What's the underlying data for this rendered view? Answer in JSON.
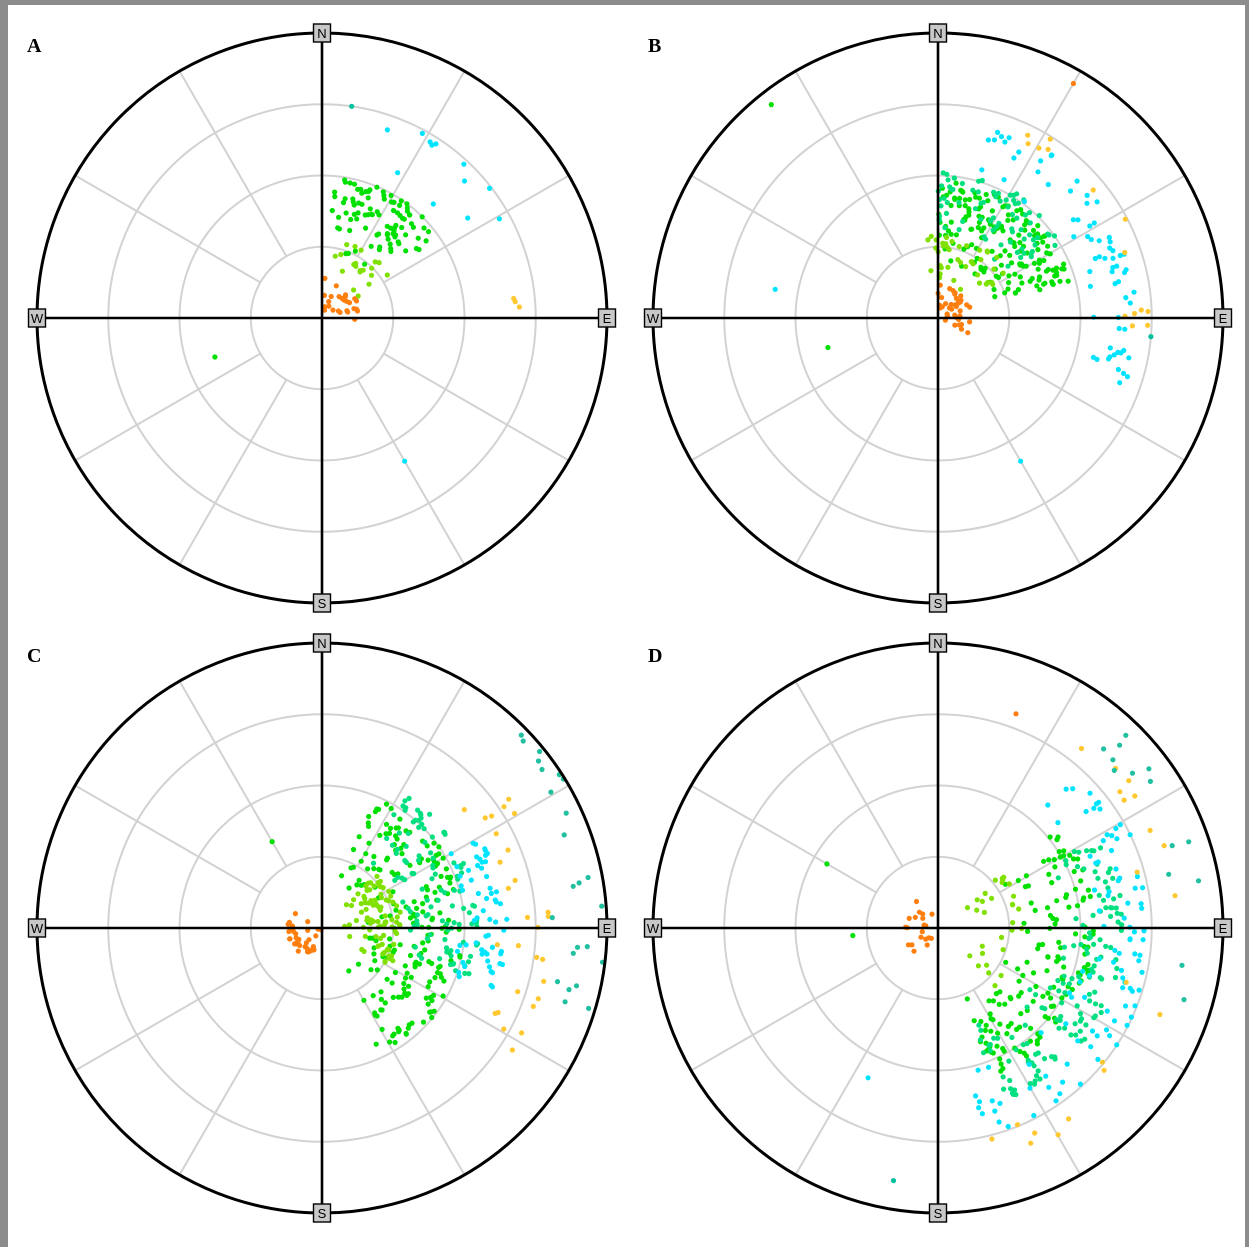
{
  "chart_data": [
    {
      "type": "scatter",
      "panel_label": "A",
      "projection": "polar (skyplot)",
      "direction_labels": [
        "N",
        "E",
        "S",
        "W"
      ],
      "rings": 4,
      "spokes_deg": 30,
      "clusters": [
        {
          "color": "#00e000",
          "count": 95,
          "az_range": [
            5,
            55
          ],
          "r_range": [
            0.22,
            0.5
          ]
        },
        {
          "color": "#80e000",
          "count": 20,
          "az_range": [
            10,
            60
          ],
          "r_range": [
            0.12,
            0.28
          ]
        },
        {
          "color": "#00e5ff",
          "count": 12,
          "az_range": [
            18,
            65
          ],
          "r_range": [
            0.48,
            0.75
          ]
        },
        {
          "color": "#ff7f0e",
          "count": 26,
          "az_range": [
            0,
            95
          ],
          "r_range": [
            0.0,
            0.14
          ]
        },
        {
          "color": "#ffc830",
          "count": 3,
          "az_range": [
            84,
            88
          ],
          "r_range": [
            0.66,
            0.7
          ]
        }
      ],
      "outliers": [
        {
          "color": "#00e000",
          "az": 250,
          "r": 0.4
        },
        {
          "color": "#00e5ff",
          "az": 150,
          "r": 0.58
        },
        {
          "color": "#00c0a0",
          "az": 8,
          "r": 0.75
        }
      ]
    },
    {
      "type": "scatter",
      "panel_label": "B",
      "projection": "polar (skyplot)",
      "direction_labels": [
        "N",
        "E",
        "S",
        "W"
      ],
      "rings": 4,
      "spokes_deg": 30,
      "clusters": [
        {
          "color": "#00e000",
          "count": 170,
          "az_range": [
            0,
            75
          ],
          "r_range": [
            0.18,
            0.48
          ]
        },
        {
          "color": "#00e080",
          "count": 80,
          "az_range": [
            0,
            60
          ],
          "r_range": [
            0.28,
            0.52
          ]
        },
        {
          "color": "#80e000",
          "count": 40,
          "az_range": [
            350,
            60
          ],
          "r_range": [
            0.1,
            0.3
          ]
        },
        {
          "color": "#00e5ff",
          "count": 70,
          "az_range": [
            15,
            110
          ],
          "r_range": [
            0.5,
            0.7
          ]
        },
        {
          "color": "#ff7f0e",
          "count": 40,
          "az_range": [
            0,
            120
          ],
          "r_range": [
            0.0,
            0.12
          ]
        },
        {
          "color": "#ffc830",
          "count": 14,
          "az_range": [
            20,
            95
          ],
          "r_range": [
            0.62,
            0.75
          ]
        }
      ],
      "outliers": [
        {
          "color": "#ff7f0e",
          "az": 30,
          "r": 0.95
        },
        {
          "color": "#00e000",
          "az": 322,
          "r": 0.95
        },
        {
          "color": "#00e5ff",
          "az": 150,
          "r": 0.58
        },
        {
          "color": "#00e5ff",
          "az": 280,
          "r": 0.58
        },
        {
          "color": "#00e000",
          "az": 255,
          "r": 0.4
        },
        {
          "color": "#00c0a0",
          "az": 95,
          "r": 0.75
        }
      ]
    },
    {
      "type": "scatter",
      "panel_label": "C",
      "projection": "polar (skyplot)",
      "direction_labels": [
        "N",
        "E",
        "S",
        "W"
      ],
      "rings": 4,
      "spokes_deg": 30,
      "clusters": [
        {
          "color": "#00e000",
          "count": 200,
          "az_range": [
            20,
            150
          ],
          "r_range": [
            0.15,
            0.5
          ]
        },
        {
          "color": "#00e080",
          "count": 110,
          "az_range": [
            30,
            110
          ],
          "r_range": [
            0.28,
            0.55
          ]
        },
        {
          "color": "#80e000",
          "count": 90,
          "az_range": [
            45,
            120
          ],
          "r_range": [
            0.05,
            0.28
          ]
        },
        {
          "color": "#00e5ff",
          "count": 60,
          "az_range": [
            60,
            110
          ],
          "r_range": [
            0.45,
            0.65
          ]
        },
        {
          "color": "#ff7f0e",
          "count": 35,
          "az_range": [
            200,
            300
          ],
          "r_range": [
            0.0,
            0.12
          ]
        },
        {
          "color": "#ffc830",
          "count": 28,
          "az_range": [
            50,
            130
          ],
          "r_range": [
            0.6,
            0.8
          ]
        },
        {
          "color": "#20c0a0",
          "count": 24,
          "az_range": [
            45,
            110
          ],
          "r_range": [
            0.75,
            1.0
          ]
        }
      ],
      "outliers": [
        {
          "color": "#00e000",
          "az": 330,
          "r": 0.35
        },
        {
          "color": "#00e000",
          "az": 155,
          "r": 0.45
        }
      ]
    },
    {
      "type": "scatter",
      "panel_label": "D",
      "projection": "polar (skyplot)",
      "direction_labels": [
        "N",
        "E",
        "S",
        "W"
      ],
      "rings": 4,
      "spokes_deg": 30,
      "clusters": [
        {
          "color": "#00e000",
          "count": 150,
          "az_range": [
            50,
            160
          ],
          "r_range": [
            0.25,
            0.55
          ]
        },
        {
          "color": "#00e080",
          "count": 140,
          "az_range": [
            60,
            160
          ],
          "r_range": [
            0.35,
            0.65
          ]
        },
        {
          "color": "#00e5ff",
          "count": 100,
          "az_range": [
            40,
            170
          ],
          "r_range": [
            0.5,
            0.75
          ]
        },
        {
          "color": "#80e000",
          "count": 30,
          "az_range": [
            50,
            140
          ],
          "r_range": [
            0.1,
            0.3
          ]
        },
        {
          "color": "#ff7f0e",
          "count": 20,
          "az_range": [
            200,
            340
          ],
          "r_range": [
            0.0,
            0.12
          ]
        },
        {
          "color": "#ffc830",
          "count": 20,
          "az_range": [
            30,
            170
          ],
          "r_range": [
            0.65,
            0.85
          ]
        },
        {
          "color": "#20c0a0",
          "count": 14,
          "az_range": [
            35,
            110
          ],
          "r_range": [
            0.75,
            0.95
          ]
        }
      ],
      "outliers": [
        {
          "color": "#ff7f0e",
          "az": 20,
          "r": 0.8
        },
        {
          "color": "#00e000",
          "az": 300,
          "r": 0.45
        },
        {
          "color": "#00e000",
          "az": 265,
          "r": 0.3
        },
        {
          "color": "#00e5ff",
          "az": 205,
          "r": 0.58
        },
        {
          "color": "#00c0a0",
          "az": 190,
          "r": 0.9
        }
      ]
    }
  ]
}
